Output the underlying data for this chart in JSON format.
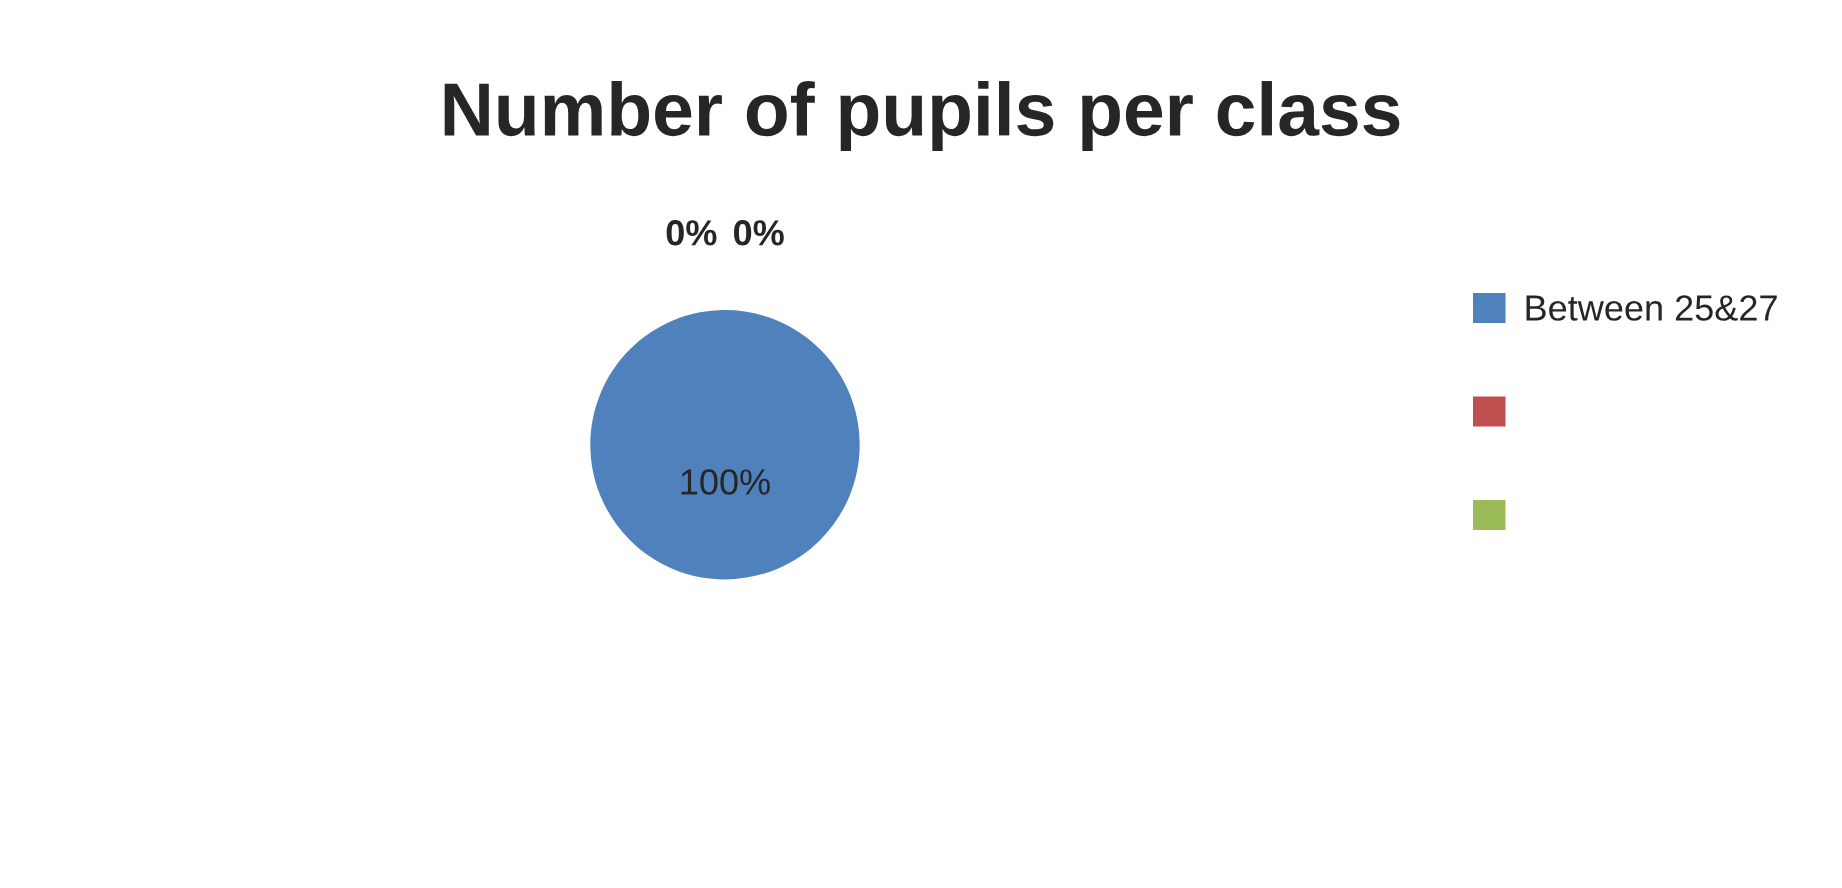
{
  "chart_data": {
    "type": "pie",
    "title": "Number of pupils per class",
    "categories": [
      "Between 25&27",
      null,
      null
    ],
    "values": [
      100,
      0,
      0
    ],
    "colors": [
      "#4f81bd",
      "#c0504d",
      "#9bbb59"
    ],
    "value_labels": [
      "100%",
      "0%",
      "0%"
    ],
    "legend": "right"
  }
}
